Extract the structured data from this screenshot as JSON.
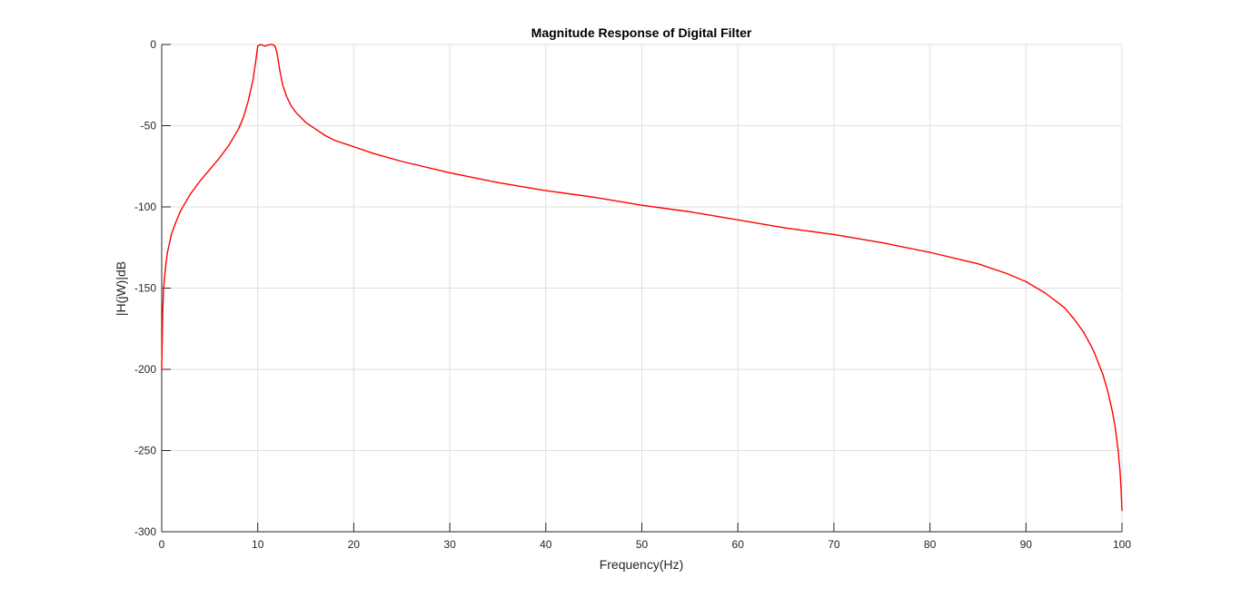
{
  "chart_data": {
    "type": "line",
    "title": "Magnitude Response of Digital Filter",
    "xlabel": "Frequency(Hz)",
    "ylabel": "|H(jW)|dB",
    "xlim": [
      0,
      100
    ],
    "ylim": [
      -300,
      0
    ],
    "xticks": [
      0,
      10,
      20,
      30,
      40,
      50,
      60,
      70,
      80,
      90,
      100
    ],
    "yticks": [
      0,
      -50,
      -100,
      -150,
      -200,
      -250,
      -300
    ],
    "grid": true,
    "series": [
      {
        "color": "#ff0000",
        "x": [
          0,
          0.1,
          0.2,
          0.4,
          0.6,
          1,
          1.5,
          2,
          3,
          4,
          5,
          6,
          7,
          8,
          8.5,
          9,
          9.5,
          9.8,
          10,
          10.3,
          10.5,
          10.8,
          11,
          11.3,
          11.5,
          11.8,
          12,
          12.3,
          12.6,
          13,
          13.5,
          14,
          15,
          16,
          17,
          18,
          20,
          22,
          25,
          30,
          35,
          40,
          45,
          50,
          55,
          60,
          65,
          70,
          75,
          80,
          85,
          88,
          90,
          92,
          94,
          95,
          96,
          97,
          98,
          98.5,
          99,
          99.3,
          99.6,
          99.8,
          99.9,
          100
        ],
        "y": [
          -200,
          -165,
          -150,
          -137,
          -128,
          -117,
          -109,
          -102,
          -92,
          -84,
          -77,
          -70,
          -62,
          -52,
          -45,
          -35,
          -22,
          -10,
          -1,
          0,
          -0.5,
          -1,
          -0.5,
          0,
          0,
          -1,
          -5,
          -16,
          -25,
          -32,
          -38,
          -42,
          -48,
          -52,
          -56,
          -59,
          -63,
          -67,
          -72,
          -79,
          -85,
          -90,
          -94,
          -99,
          -103,
          -108,
          -113,
          -117,
          -122,
          -128,
          -135,
          -141,
          -146,
          -153,
          -162,
          -169,
          -177,
          -188,
          -203,
          -213,
          -226,
          -236,
          -250,
          -263,
          -273,
          -287
        ]
      }
    ]
  }
}
